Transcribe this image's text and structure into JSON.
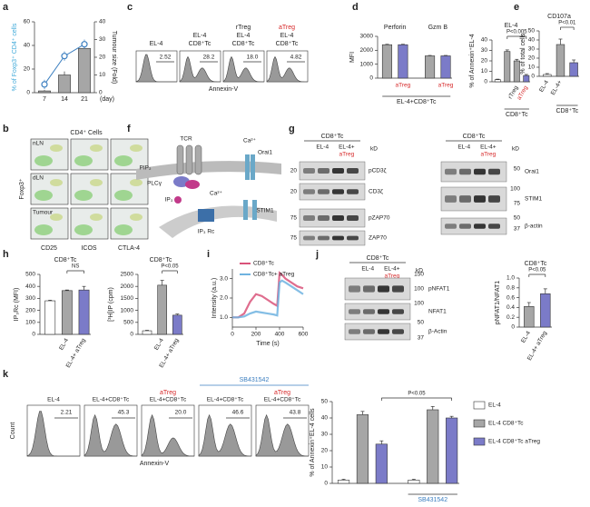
{
  "panel_letters": [
    "a",
    "b",
    "c",
    "d",
    "e",
    "f",
    "g",
    "h",
    "i",
    "j",
    "k"
  ],
  "chart_data": [
    {
      "type": "combo",
      "ylabel": "% of Foxp3⁺ CD4⁺ cells",
      "y2label": "Tumour size (Fold)",
      "categories": [
        "7",
        "14",
        "21"
      ],
      "xlabel": "(day)",
      "ylim": [
        0,
        60
      ],
      "yticks": [
        0,
        20,
        40,
        60
      ],
      "y2lim": [
        0,
        40
      ],
      "y2ticks": [
        0,
        10,
        20,
        30,
        40
      ],
      "series": [
        {
          "kind": "bar",
          "axis": "y2",
          "color": "#a6a6a6",
          "values": [
            1,
            10,
            25
          ],
          "errors": [
            0.5,
            2,
            3
          ]
        },
        {
          "kind": "line",
          "axis": "y",
          "color": "#3c7fc0",
          "values": [
            7,
            31,
            41
          ],
          "errors": [
            4,
            4,
            4
          ]
        }
      ]
    },
    {
      "type": "bar",
      "title": "EL-4",
      "ylabel": "% of Annexin⁺EL-4",
      "categories": [
        null,
        null,
        "rTreg",
        "aTreg"
      ],
      "label_colors": [
        "#222",
        "#222",
        "#222",
        "#d62728"
      ],
      "values": [
        2,
        29,
        20,
        6
      ],
      "errors": [
        0.5,
        1.5,
        1.5,
        1
      ],
      "colors": [
        "#ffffff",
        "#a6a6a6",
        "#a6a6a6",
        "#7b7bc8"
      ],
      "ylim": [
        0,
        40
      ],
      "yticks": [
        0,
        10,
        20,
        30,
        40
      ],
      "annotation": "P<0.005",
      "group_label": "CD8⁺Tc"
    },
    {
      "type": "bar",
      "ylabel": "MFI",
      "group_titles": [
        "Perforin",
        "Gzm B"
      ],
      "categories": [
        null,
        "aTreg",
        null,
        "aTreg"
      ],
      "label_colors": [
        "#222",
        "#d62728",
        "#222",
        "#d62728"
      ],
      "values": [
        2400,
        2400,
        1600,
        1600
      ],
      "errors": [
        30,
        30,
        30,
        30
      ],
      "colors": [
        "#a6a6a6",
        "#7b7bc8",
        "#a6a6a6",
        "#7b7bc8"
      ],
      "ylim": [
        0,
        3000
      ],
      "yticks": [
        0,
        1000,
        2000,
        3000
      ],
      "group_label": "EL-4+CD8⁺Tc"
    },
    {
      "type": "bar",
      "title": "CD107a",
      "ylabel": "% of total cells",
      "categories": [
        "EL-4",
        "EL-4+",
        null
      ],
      "values": [
        2,
        35,
        15
      ],
      "errors": [
        1,
        6,
        3
      ],
      "colors": [
        "#ffffff",
        "#a6a6a6",
        "#7b7bc8"
      ],
      "ylim": [
        0,
        50
      ],
      "yticks": [
        0,
        10,
        20,
        30,
        40,
        50
      ],
      "annotation": "P<0.01",
      "group_label": "CD8⁺Tc"
    },
    {
      "type": "bar",
      "title": "CD8⁺Tc",
      "ylabel": "IP₃Rc (MFI)",
      "categories": [
        null,
        "EL-4",
        "EL-4+ aTreg"
      ],
      "values": [
        280,
        365,
        370
      ],
      "errors": [
        5,
        5,
        30
      ],
      "colors": [
        "#ffffff",
        "#a6a6a6",
        "#7b7bc8"
      ],
      "ylim": [
        0,
        500
      ],
      "yticks": [
        0,
        100,
        200,
        300,
        400,
        500
      ],
      "annotation": "NS"
    },
    {
      "type": "bar",
      "title": "CD8⁺Tc",
      "ylabel": "[³H]IP (cpm)",
      "categories": [
        null,
        "EL-4",
        "EL-4+ aTreg"
      ],
      "values": [
        150,
        2050,
        800
      ],
      "errors": [
        20,
        200,
        50
      ],
      "colors": [
        "#ffffff",
        "#a6a6a6",
        "#7b7bc8"
      ],
      "ylim": [
        0,
        2500
      ],
      "yticks": [
        0,
        500,
        1000,
        1500,
        2000,
        2500
      ],
      "annotation": "P<0.05"
    },
    {
      "type": "line",
      "ylabel": "Intensity (a.u.)",
      "xlabel": "Time (s)",
      "x": [
        0,
        50,
        100,
        150,
        200,
        250,
        300,
        350,
        380,
        400,
        420,
        450,
        500,
        550,
        600
      ],
      "xlim": [
        0,
        600
      ],
      "xticks": [
        0,
        200,
        400,
        600
      ],
      "ylim": [
        0.5,
        3.5
      ],
      "yticks": [
        {
          "value": 1,
          "label": "1.0"
        },
        {
          "value": 2,
          "label": "2.0"
        },
        {
          "value": 3,
          "label": "3.0"
        }
      ],
      "series": [
        {
          "name": "CD8⁺Tc",
          "color": "#d9537a",
          "values": [
            1,
            1,
            1.2,
            1.8,
            2.2,
            2.1,
            1.9,
            1.7,
            1.6,
            3.3,
            3.2,
            3.0,
            2.8,
            2.6,
            2.5
          ]
        },
        {
          "name": "CD8⁺Tc+ aTreg",
          "color": "#6fb3e0",
          "values": [
            1,
            1,
            1.05,
            1.2,
            1.3,
            1.25,
            1.2,
            1.15,
            1.1,
            2.8,
            2.9,
            2.8,
            2.6,
            2.4,
            2.2
          ]
        }
      ]
    },
    {
      "type": "bar",
      "title": "CD8⁺Tc",
      "ylabel": "pNFAT1/NFAT1",
      "categories": [
        "EL-4",
        "EL-4+ aTreg"
      ],
      "values": [
        0.42,
        0.68
      ],
      "errors": [
        0.08,
        0.1
      ],
      "colors": [
        "#a6a6a6",
        "#7b7bc8"
      ],
      "ylim": [
        0,
        1
      ],
      "yticks": [
        0,
        0.2,
        0.4,
        0.6,
        0.8,
        {
          "value": 1,
          "label": "1.0"
        }
      ],
      "annotation": "P<0.05"
    },
    {
      "type": "bar",
      "ylabel": "% of Annexin⁺EL-4 cells",
      "values": [
        2,
        42,
        24,
        2,
        45,
        40
      ],
      "errors": [
        0.5,
        2,
        2,
        0.5,
        2,
        1
      ],
      "colors": [
        "#ffffff",
        "#a6a6a6",
        "#7b7bc8",
        "#ffffff",
        "#a6a6a6",
        "#7b7bc8"
      ],
      "ylim": [
        0,
        50
      ],
      "yticks": [
        0,
        10,
        20,
        30,
        40,
        50
      ],
      "annotation": "P<0.05",
      "group_label": "SB431542",
      "group_label_color": "#3c7fc0",
      "legend": [
        {
          "name": "EL-4",
          "color": "#ffffff"
        },
        {
          "name": "EL-4 CD8⁺Tc",
          "color": "#a6a6a6"
        },
        {
          "name": "EL-4 CD8⁺Tc aTreg",
          "color": "#7b7bc8"
        }
      ]
    }
  ],
  "panels": {
    "b": {
      "title": "CD4⁺ Cells",
      "rows": [
        "nLN",
        "dLN",
        "Tumour"
      ],
      "ylabel": "Foxp3⁺",
      "cols": [
        "CD25",
        "ICOS",
        "CTLA-4"
      ]
    },
    "c": {
      "hist_labels": [
        [
          "EL-4"
        ],
        [
          "EL-4",
          "CD8⁺Tc"
        ],
        [
          "rTreg",
          "EL-4",
          "CD8⁺Tc"
        ],
        [
          "aTreg",
          "EL-4",
          "CD8⁺Tc"
        ]
      ],
      "hist_values": [
        "2.52",
        "28.2",
        "18.0",
        "4.82"
      ],
      "xlabel": "Annexin-V"
    },
    "f": {
      "labels": [
        "TCR",
        "PIP₂",
        "PLCγ",
        "IP₃",
        "Ca²⁺",
        "Ca²⁺",
        "Orai1",
        "STIM1",
        "IP₃ Rc"
      ]
    },
    "g": {
      "left": {
        "header": "CD8⁺Tc",
        "cols": [
          "EL-4",
          "EL-4+",
          "aTreg"
        ],
        "unit": "kD",
        "kd": [
          "20",
          "20",
          "75",
          "75"
        ],
        "bands": [
          "pCD3ζ",
          "CD3ζ",
          "pZAP70",
          "ZAP70"
        ]
      },
      "right": {
        "header": "CD8⁺Tc",
        "cols": [
          "EL-4",
          "EL-4+",
          "aTreg"
        ],
        "unit": "kD",
        "kd": [
          "50",
          "100",
          "75",
          "50",
          "37"
        ],
        "bands": [
          "Orai1",
          "STIM1",
          "β-actin"
        ]
      }
    },
    "j": {
      "header": "CD8⁺Tc",
      "cols": [
        "EL-4",
        "EL-4+",
        "aTreg"
      ],
      "unit": "kD",
      "kd": [
        "150",
        "100",
        "100",
        "50",
        "37"
      ],
      "bands": [
        "pNFAT1",
        "NFAT1",
        "β-Actin"
      ]
    },
    "k": {
      "top": "SB431542",
      "treg": [
        "aTreg",
        "aTreg"
      ],
      "hist_labels": [
        "EL-4",
        "EL-4+CD8⁺Tc",
        "EL-4+CD8⁺Tc",
        "EL-4+CD8⁺Tc",
        "EL-4+CD8⁺Tc"
      ],
      "hist_values": [
        "2.21",
        "45.3",
        "20.0",
        "46.6",
        "43.8"
      ],
      "ylabel": "Count",
      "xlabel": "Annexin-V"
    }
  }
}
